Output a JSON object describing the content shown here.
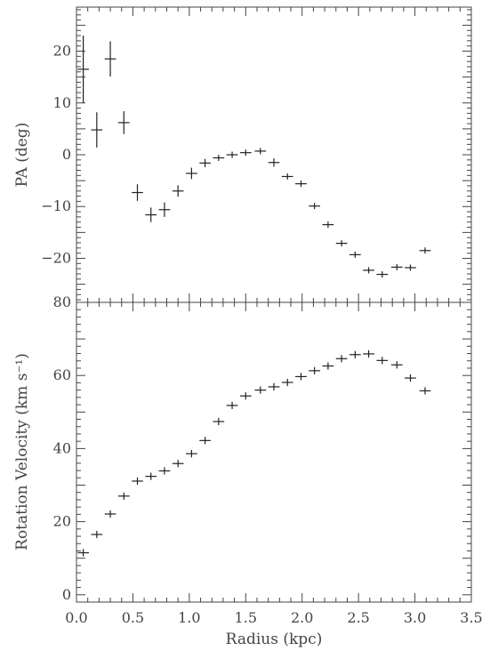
{
  "chart_data": [
    {
      "type": "scatter",
      "panel": "top",
      "title": "",
      "xlabel": "",
      "ylabel": "PA (deg)",
      "xlim": [
        0.0,
        3.5
      ],
      "ylim": [
        -28.5,
        28.5
      ],
      "yticks": [
        -20,
        -10,
        0,
        10,
        20
      ],
      "ytick_labels": [
        "−20",
        "−10",
        "0",
        "10",
        "20"
      ],
      "grid": false,
      "series": [
        {
          "points": [
            {
              "x": 0.06,
              "y": 16.5,
              "xerr": 0.05,
              "yerr": 6.5
            },
            {
              "x": 0.18,
              "y": 4.8,
              "xerr": 0.05,
              "yerr": 3.4
            },
            {
              "x": 0.3,
              "y": 18.5,
              "xerr": 0.05,
              "yerr": 3.4
            },
            {
              "x": 0.42,
              "y": 6.2,
              "xerr": 0.05,
              "yerr": 2.2
            },
            {
              "x": 0.54,
              "y": -7.3,
              "xerr": 0.05,
              "yerr": 1.6
            },
            {
              "x": 0.66,
              "y": -11.6,
              "xerr": 0.05,
              "yerr": 1.4
            },
            {
              "x": 0.78,
              "y": -10.6,
              "xerr": 0.05,
              "yerr": 1.4
            },
            {
              "x": 0.9,
              "y": -7.0,
              "xerr": 0.05,
              "yerr": 1.1
            },
            {
              "x": 1.02,
              "y": -3.6,
              "xerr": 0.05,
              "yerr": 1.1
            },
            {
              "x": 1.14,
              "y": -1.6,
              "xerr": 0.05,
              "yerr": 0.8
            },
            {
              "x": 1.26,
              "y": -0.6,
              "xerr": 0.05,
              "yerr": 0.6
            },
            {
              "x": 1.38,
              "y": 0.0,
              "xerr": 0.05,
              "yerr": 0.6
            },
            {
              "x": 1.5,
              "y": 0.4,
              "xerr": 0.05,
              "yerr": 0.6
            },
            {
              "x": 1.63,
              "y": 0.7,
              "xerr": 0.05,
              "yerr": 0.6
            },
            {
              "x": 1.75,
              "y": -1.5,
              "xerr": 0.05,
              "yerr": 0.8
            },
            {
              "x": 1.87,
              "y": -4.2,
              "xerr": 0.05,
              "yerr": 0.6
            },
            {
              "x": 1.99,
              "y": -5.6,
              "xerr": 0.05,
              "yerr": 0.6
            },
            {
              "x": 2.11,
              "y": -9.9,
              "xerr": 0.05,
              "yerr": 0.6
            },
            {
              "x": 2.23,
              "y": -13.5,
              "xerr": 0.05,
              "yerr": 0.6
            },
            {
              "x": 2.35,
              "y": -17.1,
              "xerr": 0.05,
              "yerr": 0.6
            },
            {
              "x": 2.47,
              "y": -19.3,
              "xerr": 0.05,
              "yerr": 0.6
            },
            {
              "x": 2.59,
              "y": -22.3,
              "xerr": 0.05,
              "yerr": 0.6
            },
            {
              "x": 2.71,
              "y": -23.1,
              "xerr": 0.05,
              "yerr": 0.6
            },
            {
              "x": 2.84,
              "y": -21.7,
              "xerr": 0.05,
              "yerr": 0.6
            },
            {
              "x": 2.96,
              "y": -21.8,
              "xerr": 0.05,
              "yerr": 0.6
            },
            {
              "x": 3.09,
              "y": -18.5,
              "xerr": 0.05,
              "yerr": 0.6
            }
          ]
        }
      ]
    },
    {
      "type": "scatter",
      "panel": "bottom",
      "title": "",
      "xlabel": "Radius (kpc)",
      "ylabel": "Rotation Velocity (km s⁻¹)",
      "xlim": [
        0.0,
        3.5
      ],
      "ylim": [
        -2,
        80
      ],
      "xticks": [
        0.0,
        0.5,
        1.0,
        1.5,
        2.0,
        2.5,
        3.0,
        3.5
      ],
      "xtick_labels": [
        "0.0",
        "0.5",
        "1.0",
        "1.5",
        "2.0",
        "2.5",
        "3.0",
        "3.5"
      ],
      "yticks": [
        0,
        20,
        40,
        60,
        80
      ],
      "ytick_labels": [
        "0",
        "20",
        "40",
        "60",
        "80"
      ],
      "grid": false,
      "series": [
        {
          "points": [
            {
              "x": 0.06,
              "y": 11.5,
              "xerr": 0.05,
              "yerr": 1.0
            },
            {
              "x": 0.18,
              "y": 16.5,
              "xerr": 0.05,
              "yerr": 1.0
            },
            {
              "x": 0.3,
              "y": 22.1,
              "xerr": 0.05,
              "yerr": 1.0
            },
            {
              "x": 0.42,
              "y": 27.0,
              "xerr": 0.05,
              "yerr": 1.0
            },
            {
              "x": 0.54,
              "y": 31.1,
              "xerr": 0.05,
              "yerr": 1.0
            },
            {
              "x": 0.66,
              "y": 32.4,
              "xerr": 0.05,
              "yerr": 1.0
            },
            {
              "x": 0.78,
              "y": 33.9,
              "xerr": 0.05,
              "yerr": 1.0
            },
            {
              "x": 0.9,
              "y": 35.9,
              "xerr": 0.05,
              "yerr": 1.0
            },
            {
              "x": 1.02,
              "y": 38.6,
              "xerr": 0.05,
              "yerr": 1.0
            },
            {
              "x": 1.14,
              "y": 42.2,
              "xerr": 0.05,
              "yerr": 1.0
            },
            {
              "x": 1.26,
              "y": 47.4,
              "xerr": 0.05,
              "yerr": 1.0
            },
            {
              "x": 1.38,
              "y": 51.8,
              "xerr": 0.05,
              "yerr": 1.0
            },
            {
              "x": 1.5,
              "y": 54.4,
              "xerr": 0.05,
              "yerr": 1.0
            },
            {
              "x": 1.63,
              "y": 56.0,
              "xerr": 0.05,
              "yerr": 1.0
            },
            {
              "x": 1.75,
              "y": 56.9,
              "xerr": 0.05,
              "yerr": 1.0
            },
            {
              "x": 1.87,
              "y": 58.1,
              "xerr": 0.05,
              "yerr": 1.0
            },
            {
              "x": 1.99,
              "y": 59.7,
              "xerr": 0.05,
              "yerr": 1.0
            },
            {
              "x": 2.11,
              "y": 61.3,
              "xerr": 0.05,
              "yerr": 1.0
            },
            {
              "x": 2.23,
              "y": 62.6,
              "xerr": 0.05,
              "yerr": 1.0
            },
            {
              "x": 2.35,
              "y": 64.6,
              "xerr": 0.05,
              "yerr": 1.0
            },
            {
              "x": 2.47,
              "y": 65.7,
              "xerr": 0.05,
              "yerr": 1.0
            },
            {
              "x": 2.59,
              "y": 65.9,
              "xerr": 0.05,
              "yerr": 1.0
            },
            {
              "x": 2.71,
              "y": 64.1,
              "xerr": 0.05,
              "yerr": 1.0
            },
            {
              "x": 2.84,
              "y": 62.9,
              "xerr": 0.05,
              "yerr": 1.0
            },
            {
              "x": 2.96,
              "y": 59.3,
              "xerr": 0.05,
              "yerr": 1.0
            },
            {
              "x": 3.09,
              "y": 55.8,
              "xerr": 0.05,
              "yerr": 1.0
            }
          ]
        }
      ]
    }
  ],
  "colors": {
    "axes": "#444444",
    "markers": "#222222",
    "background": "#ffffff"
  }
}
